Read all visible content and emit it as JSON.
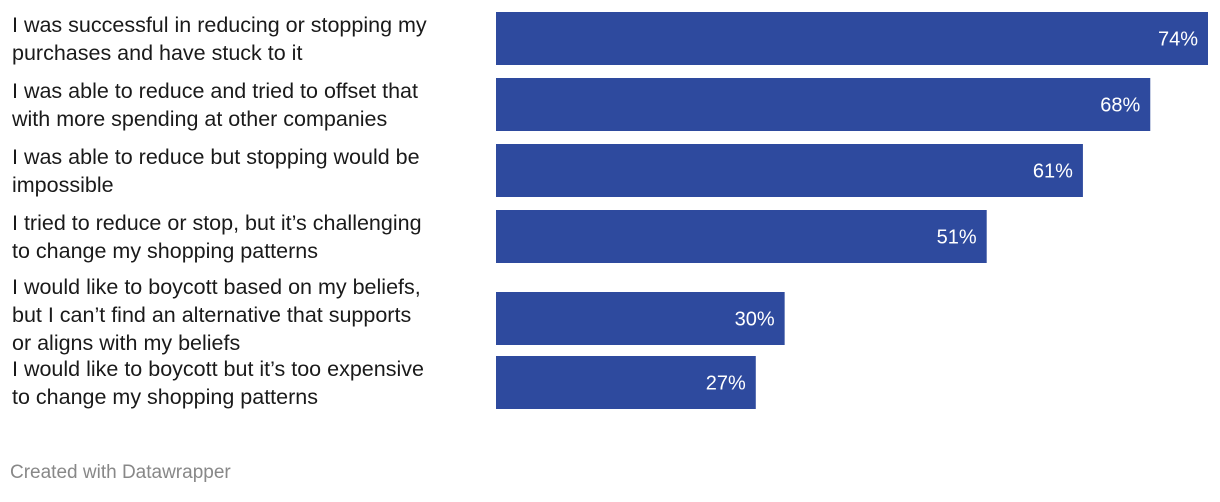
{
  "chart_data": {
    "type": "bar",
    "orientation": "horizontal",
    "title": "",
    "xlabel": "",
    "ylabel": "",
    "xlim": [
      0,
      100
    ],
    "grid": false,
    "legend": "none",
    "bar_color": "#2e4a9e",
    "value_format": "{v}%",
    "categories": [
      [
        "I was successful in reducing or stopping my",
        "purchases and have stuck to it"
      ],
      [
        "I was able to reduce and tried to offset that",
        "with more spending at other companies"
      ],
      [
        "I was able to reduce but stopping would be",
        "impossible"
      ],
      [
        "I tried to reduce or stop, but it’s challenging",
        "to change my shopping patterns"
      ],
      [
        "I would like to boycott based on my beliefs,",
        "but I can’t find an alternative that supports",
        "or aligns with my beliefs"
      ],
      [
        "I would like to boycott but it’s too expensive",
        "to change my shopping patterns"
      ]
    ],
    "values": [
      74,
      68,
      61,
      51,
      30,
      27
    ]
  },
  "footer": {
    "credit": "Created with Datawrapper"
  }
}
